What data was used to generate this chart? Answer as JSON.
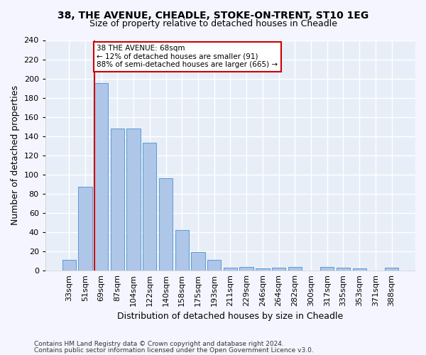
{
  "title1": "38, THE AVENUE, CHEADLE, STOKE-ON-TRENT, ST10 1EG",
  "title2": "Size of property relative to detached houses in Cheadle",
  "xlabel": "Distribution of detached houses by size in Cheadle",
  "ylabel": "Number of detached properties",
  "categories": [
    "33sqm",
    "51sqm",
    "69sqm",
    "87sqm",
    "104sqm",
    "122sqm",
    "140sqm",
    "158sqm",
    "175sqm",
    "193sqm",
    "211sqm",
    "229sqm",
    "246sqm",
    "264sqm",
    "282sqm",
    "300sqm",
    "317sqm",
    "335sqm",
    "353sqm",
    "371sqm",
    "388sqm"
  ],
  "values": [
    11,
    87,
    195,
    148,
    148,
    133,
    96,
    42,
    19,
    11,
    3,
    4,
    2,
    3,
    4,
    0,
    4,
    3,
    2,
    0,
    3
  ],
  "bar_color": "#aec6e8",
  "bar_edge_color": "#5b9bd5",
  "vline_x_index": 2,
  "vline_color": "#cc0000",
  "annotation_line1": "38 THE AVENUE: 68sqm",
  "annotation_line2": "← 12% of detached houses are smaller (91)",
  "annotation_line3": "88% of semi-detached houses are larger (665) →",
  "annotation_box_color": "#ffffff",
  "annotation_border_color": "#cc0000",
  "footer1": "Contains HM Land Registry data © Crown copyright and database right 2024.",
  "footer2": "Contains public sector information licensed under the Open Government Licence v3.0.",
  "ylim": [
    0,
    240
  ],
  "yticks": [
    0,
    20,
    40,
    60,
    80,
    100,
    120,
    140,
    160,
    180,
    200,
    220,
    240
  ],
  "bg_color": "#e8eef8",
  "grid_color": "#ffffff",
  "fig_bg_color": "#f5f5ff",
  "title1_fontsize": 10,
  "title2_fontsize": 9,
  "axis_label_fontsize": 9,
  "tick_fontsize": 8,
  "footer_fontsize": 6.5
}
